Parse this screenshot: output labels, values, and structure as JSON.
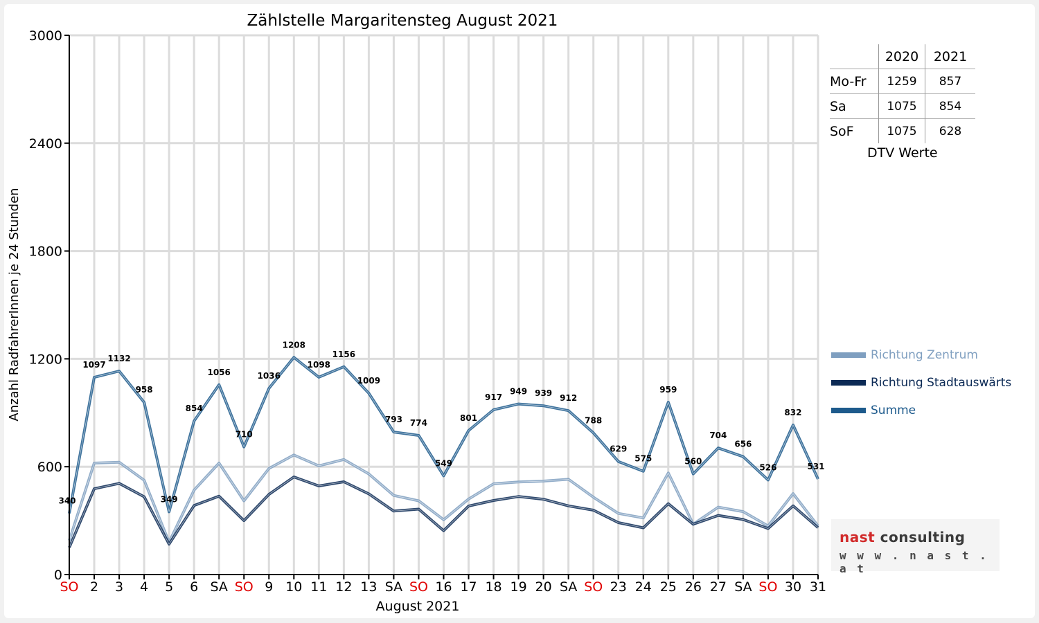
{
  "chart_data": {
    "type": "line",
    "title": "Zählstelle Margaritensteg August 2021",
    "xlabel": "August 2021",
    "ylabel": "Anzahl RadfahrerInnen je 24 Stunden",
    "ylim": [
      0,
      3000
    ],
    "yticks": [
      0,
      600,
      1200,
      1800,
      2400,
      3000
    ],
    "grid": true,
    "legend_position": "right",
    "categories": [
      "SO",
      "2",
      "3",
      "4",
      "5",
      "6",
      "SA",
      "SO",
      "9",
      "10",
      "11",
      "12",
      "13",
      "SA",
      "SO",
      "16",
      "17",
      "18",
      "19",
      "20",
      "SA",
      "SO",
      "23",
      "24",
      "25",
      "26",
      "27",
      "SA",
      "SO",
      "30",
      "31"
    ],
    "sunday_indices": [
      0,
      7,
      14,
      21,
      28
    ],
    "series": [
      {
        "name": "Richtung Zentrum",
        "color": "#7f9fc0",
        "values": [
          190,
          620,
          625,
          525,
          180,
          470,
          620,
          410,
          590,
          665,
          605,
          640,
          560,
          440,
          410,
          305,
          420,
          505,
          515,
          520,
          530,
          430,
          340,
          315,
          565,
          280,
          375,
          350,
          270,
          450,
          270
        ]
      },
      {
        "name": "Richtung Stadtauswärts",
        "color": "#0c2a55",
        "values": [
          150,
          477,
          507,
          433,
          169,
          384,
          436,
          300,
          446,
          543,
          493,
          516,
          449,
          353,
          364,
          244,
          381,
          412,
          434,
          419,
          382,
          358,
          289,
          260,
          394,
          280,
          329,
          306,
          256,
          382,
          261
        ]
      },
      {
        "name": "Summe",
        "color": "#1d5a8c",
        "values": [
          340,
          1097,
          1132,
          958,
          349,
          854,
          1056,
          710,
          1036,
          1208,
          1098,
          1156,
          1009,
          793,
          774,
          549,
          801,
          917,
          949,
          939,
          912,
          788,
          629,
          575,
          959,
          560,
          704,
          656,
          526,
          832,
          531
        ],
        "labels": [
          "340",
          "1097",
          "1132",
          "958",
          "349",
          "854",
          "1056",
          "710",
          "1036",
          "1208",
          "1098",
          "1156",
          "1009",
          "793",
          "774",
          "549",
          "801",
          "917",
          "949",
          "939",
          "912",
          "788",
          "629",
          "575",
          "959",
          "560",
          "704",
          "656",
          "526",
          "832",
          "531"
        ]
      }
    ]
  },
  "dtv": {
    "header": [
      "",
      "2020",
      "2021"
    ],
    "rows": [
      {
        "label": "Mo-Fr",
        "v2020": "1259",
        "v2021": "857"
      },
      {
        "label": "Sa",
        "v2020": "1075",
        "v2021": "854"
      },
      {
        "label": "SoF",
        "v2020": "1075",
        "v2021": "628"
      }
    ],
    "caption": "DTV Werte"
  },
  "logo": {
    "line1_red": "nast",
    "line1_rest": " consulting",
    "line2": "w w w . n a s t . a t"
  },
  "colors": {
    "sunday_label": "#e00000",
    "grid": "#dcdcdc",
    "axis": "#000000"
  }
}
